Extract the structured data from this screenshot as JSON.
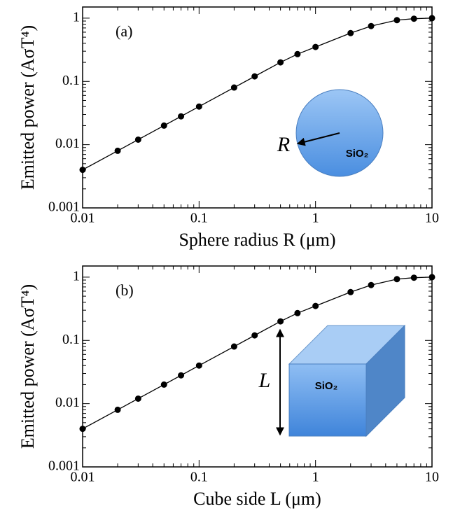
{
  "chart_data": [
    {
      "type": "line",
      "xlabel": "Sphere radius R (μm)",
      "ylabel": "Emitted power (AσT⁴)",
      "panel_label": "(a)",
      "inset_label": "R",
      "inset_material": "SiO₂",
      "log_x": true,
      "log_y": true,
      "marker": true,
      "color": "#000000",
      "x": [
        0.01,
        0.02,
        0.03,
        0.05,
        0.07,
        0.1,
        0.2,
        0.3,
        0.5,
        0.7,
        1,
        2,
        3,
        5,
        7,
        10
      ],
      "values": [
        0.004,
        0.008,
        0.012,
        0.02,
        0.028,
        0.04,
        0.08,
        0.12,
        0.2,
        0.27,
        0.35,
        0.58,
        0.75,
        0.93,
        0.98,
        1.0
      ],
      "xlim": [
        0.01,
        10
      ],
      "ylim": [
        0.001,
        1.5
      ],
      "xticks": [
        0.01,
        0.1,
        1,
        10
      ],
      "yticks": [
        0.001,
        0.01,
        0.1,
        1
      ]
    },
    {
      "type": "line",
      "xlabel": "Cube side L (μm)",
      "ylabel": "Emitted power (AσT⁴)",
      "panel_label": "(b)",
      "inset_label": "L",
      "inset_material": "SiO₂",
      "log_x": true,
      "log_y": true,
      "marker": true,
      "color": "#000000",
      "x": [
        0.01,
        0.02,
        0.03,
        0.05,
        0.07,
        0.1,
        0.2,
        0.3,
        0.5,
        0.7,
        1,
        2,
        3,
        5,
        7,
        10
      ],
      "values": [
        0.004,
        0.008,
        0.012,
        0.02,
        0.028,
        0.04,
        0.08,
        0.12,
        0.2,
        0.27,
        0.35,
        0.58,
        0.75,
        0.93,
        0.98,
        1.0
      ],
      "xlim": [
        0.01,
        10
      ],
      "ylim": [
        0.001,
        1.5
      ],
      "xticks": [
        0.01,
        0.1,
        1,
        10
      ],
      "yticks": [
        0.001,
        0.01,
        0.1,
        1
      ]
    }
  ]
}
